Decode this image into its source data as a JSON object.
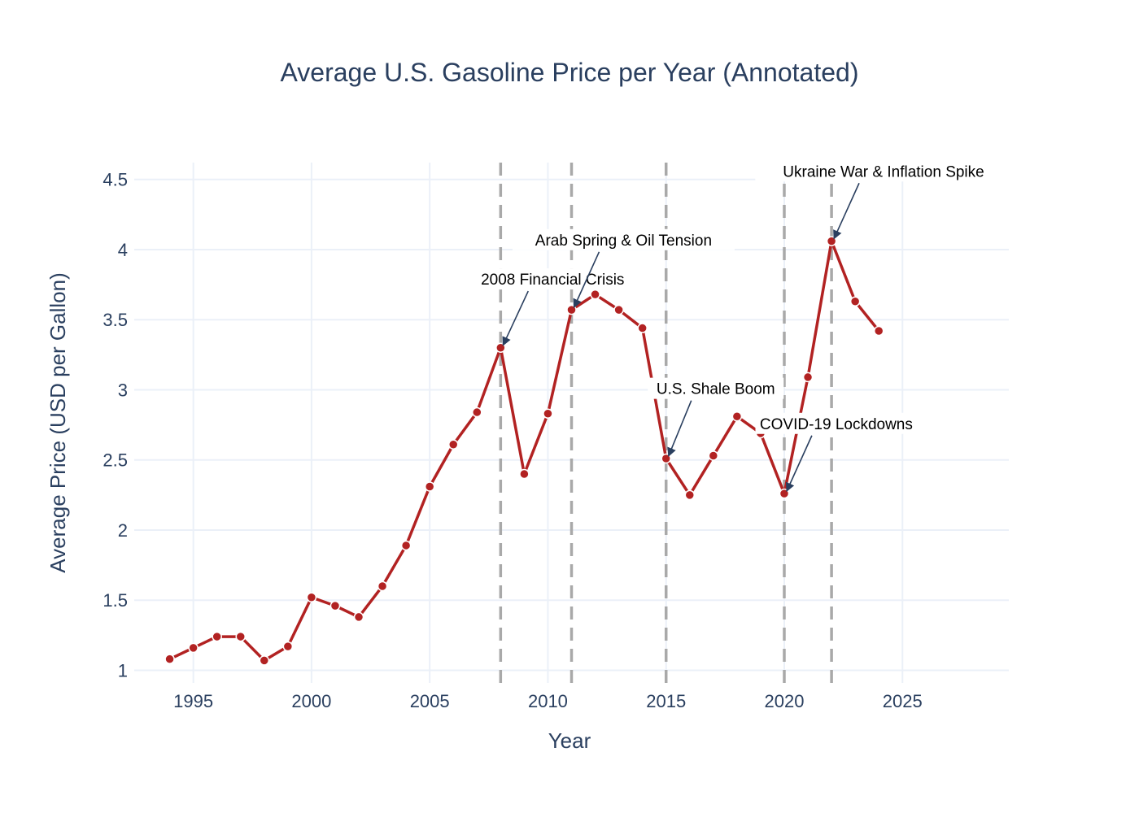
{
  "chart_data": {
    "type": "line",
    "title": "Average U.S. Gasoline Price per Year (Annotated)",
    "xlabel": "Year",
    "ylabel": "Average Price (USD per Gallon)",
    "xlim": [
      1992.5,
      2029.5
    ],
    "ylim": [
      0.91,
      4.62
    ],
    "x_ticks": [
      1995,
      2000,
      2005,
      2010,
      2015,
      2020,
      2025
    ],
    "y_ticks": [
      1,
      1.5,
      2,
      2.5,
      3,
      3.5,
      4,
      4.5
    ],
    "y_tick_labels": [
      "1",
      "1.5",
      "2",
      "2.5",
      "3",
      "3.5",
      "4",
      "4.5"
    ],
    "grid": true,
    "series": [
      {
        "color": "#b22222",
        "x": [
          1994,
          1995,
          1996,
          1997,
          1998,
          1999,
          2000,
          2001,
          2002,
          2003,
          2004,
          2005,
          2006,
          2007,
          2008,
          2009,
          2010,
          2011,
          2012,
          2013,
          2014,
          2015,
          2016,
          2017,
          2018,
          2019,
          2020,
          2021,
          2022,
          2023,
          2024
        ],
        "y": [
          1.08,
          1.16,
          1.24,
          1.24,
          1.07,
          1.17,
          1.52,
          1.46,
          1.38,
          1.6,
          1.89,
          2.31,
          2.61,
          2.84,
          3.3,
          2.4,
          2.83,
          3.57,
          3.68,
          3.57,
          3.44,
          2.51,
          2.25,
          2.53,
          2.81,
          2.69,
          2.26,
          3.09,
          4.06,
          3.63,
          3.42
        ]
      }
    ],
    "vlines": [
      2008,
      2011,
      2015,
      2020,
      2022
    ],
    "vline_color": "#a9a9a9",
    "annotations": [
      {
        "text": "2008 Financial Crisis",
        "x": 2008,
        "y": 3.3,
        "text_x": 2010.2,
        "text_y": 3.75
      },
      {
        "text": "Arab Spring & Oil Tension",
        "x": 2011,
        "y": 3.57,
        "text_x": 2013.2,
        "text_y": 4.03
      },
      {
        "text": "U.S. Shale Boom",
        "x": 2015,
        "y": 2.51,
        "text_x": 2017.1,
        "text_y": 2.97
      },
      {
        "text": "COVID-19 Lockdowns",
        "x": 2020,
        "y": 2.26,
        "text_x": 2022.2,
        "text_y": 2.72
      },
      {
        "text": "Ukraine War & Inflation Spike",
        "x": 2022,
        "y": 4.06,
        "text_x": 2024.2,
        "text_y": 4.52
      }
    ]
  }
}
